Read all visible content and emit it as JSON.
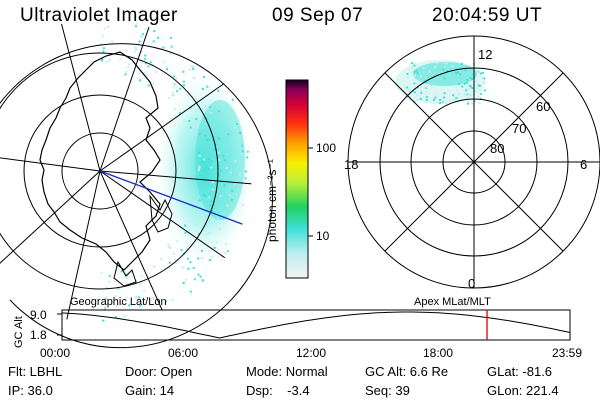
{
  "header": {
    "instrument": "Ultraviolet Imager",
    "date": "09 Sep 07",
    "time": "20:04:59 UT"
  },
  "colorbar": {
    "unit_label": "photon cm⁻²s⁻¹",
    "ticks": [
      "100",
      "10"
    ]
  },
  "polar_plot": {
    "mlt_labels": {
      "top": "12",
      "bottom": "0",
      "left": "18",
      "right": "6"
    },
    "mlat_labels": [
      "60",
      "70",
      "80"
    ]
  },
  "altitude_panel": {
    "ylabel": "GC Alt",
    "yticks": [
      "9.0",
      "1.8"
    ],
    "left_title": "Geographic Lat/Lon",
    "right_title": "Apex MLat/MLT",
    "xticks": [
      "00:00",
      "06:00",
      "12:00",
      "18:00",
      "23:59"
    ],
    "current_time_marker_hours": 20.08,
    "marker_color": "#e00000"
  },
  "info": {
    "flt": "Flt: LBHL",
    "ip": "IP: 36.0",
    "door": "Door: Open",
    "gain": "Gain: 14",
    "mode": "Mode: Normal",
    "dsp": "Dsp:    -3.4",
    "gcalt": "GC Alt: 6.6 Re",
    "seq": "Seq: 39",
    "glat": "GLat: -81.6",
    "glon": "GLon: 221.4"
  },
  "colors": {
    "aurora": "#3fe0d8",
    "track": "#1030c0",
    "marker": "#e00000"
  }
}
